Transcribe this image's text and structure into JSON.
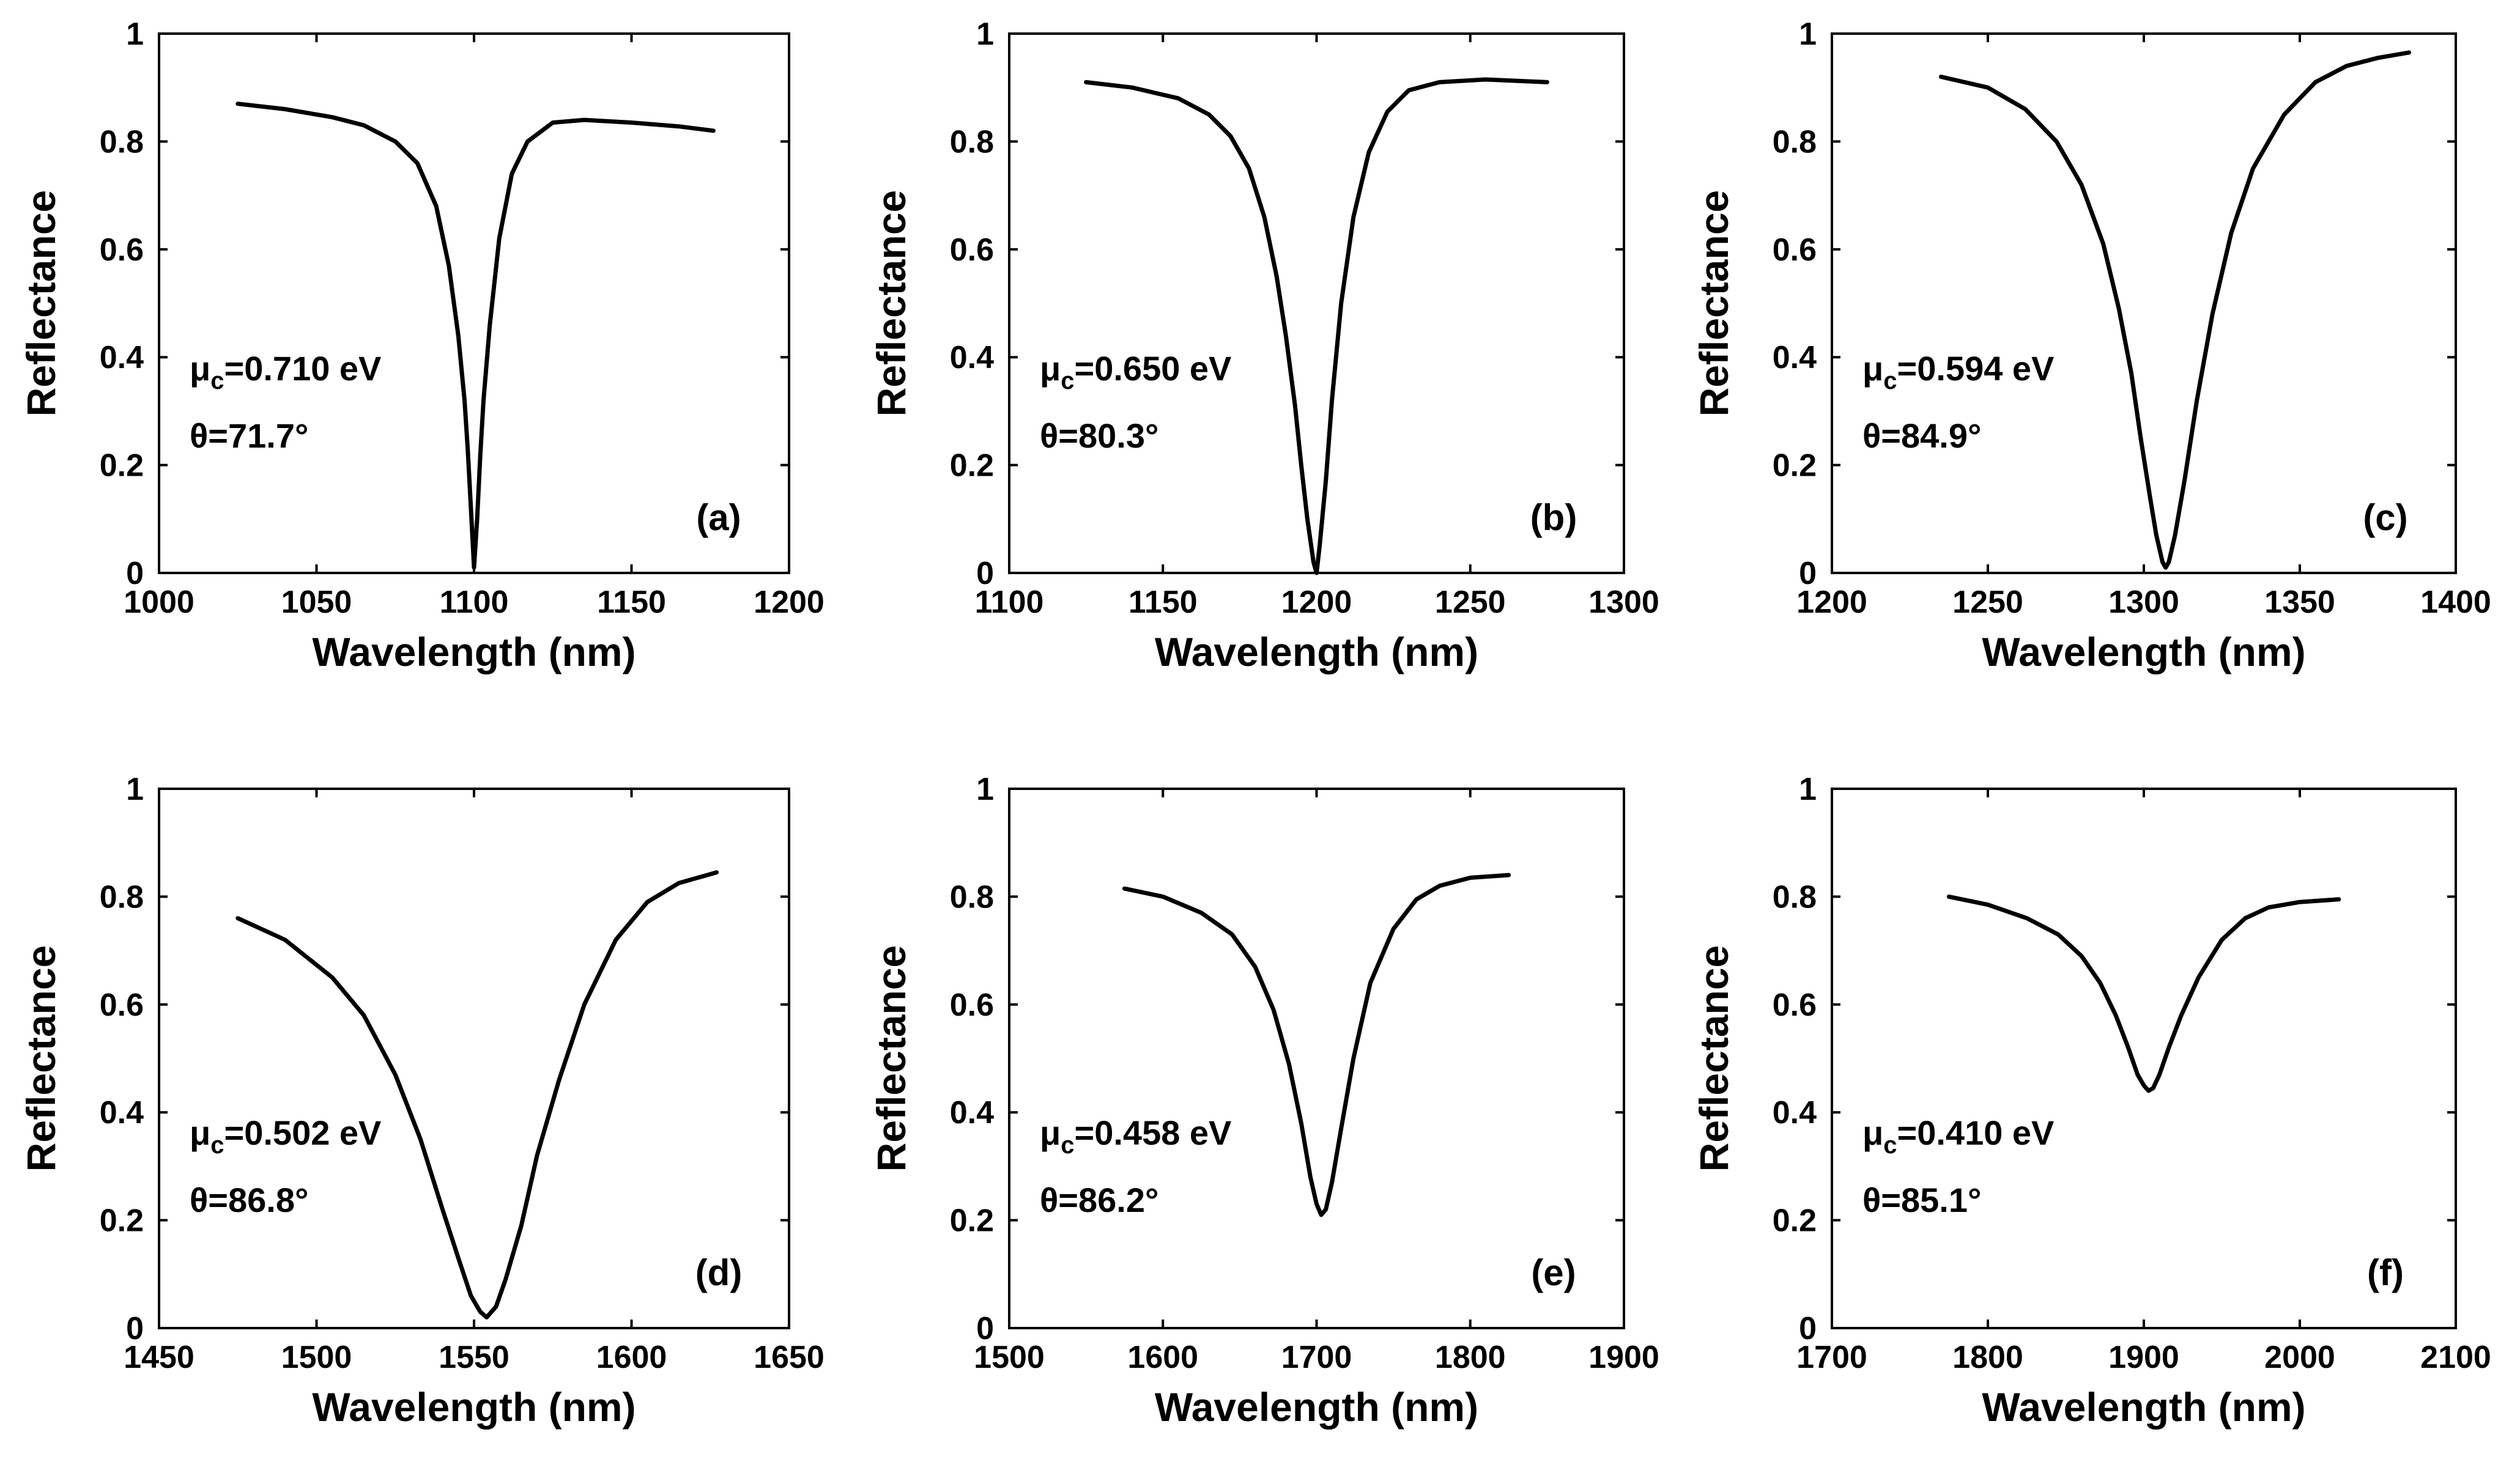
{
  "chart_data": [
    {
      "type": "line",
      "panel_label": "(a)",
      "xlabel": "Wavelength (nm)",
      "ylabel": "Reflectance",
      "xlim": [
        1000,
        1200
      ],
      "ylim": [
        0,
        1
      ],
      "xticks": [
        1000,
        1050,
        1100,
        1150,
        1200
      ],
      "yticks": [
        0,
        0.2,
        0.4,
        0.6,
        0.8,
        1
      ],
      "annotations": {
        "mu_symbol": "μ",
        "mu_sub": "c",
        "mu_value": "=0.710 eV",
        "theta": "θ=71.7°"
      },
      "series": [
        {
          "name": "Reflectance",
          "x": [
            1025,
            1040,
            1055,
            1065,
            1075,
            1082,
            1088,
            1092,
            1095,
            1097,
            1098,
            1099,
            1100,
            1101,
            1102,
            1103,
            1105,
            1108,
            1112,
            1117,
            1125,
            1135,
            1150,
            1165,
            1176
          ],
          "y": [
            0.87,
            0.86,
            0.845,
            0.83,
            0.8,
            0.76,
            0.68,
            0.57,
            0.44,
            0.32,
            0.23,
            0.12,
            0.01,
            0.1,
            0.22,
            0.32,
            0.46,
            0.62,
            0.74,
            0.8,
            0.835,
            0.84,
            0.835,
            0.828,
            0.82
          ]
        }
      ]
    },
    {
      "type": "line",
      "panel_label": "(b)",
      "xlabel": "Wavelength (nm)",
      "ylabel": "Reflectance",
      "xlim": [
        1100,
        1300
      ],
      "ylim": [
        0,
        1
      ],
      "xticks": [
        1100,
        1150,
        1200,
        1250,
        1300
      ],
      "yticks": [
        0,
        0.2,
        0.4,
        0.6,
        0.8,
        1
      ],
      "annotations": {
        "mu_symbol": "μ",
        "mu_sub": "c",
        "mu_value": "=0.650 eV",
        "theta": "θ=80.3°"
      },
      "series": [
        {
          "name": "Reflectance",
          "x": [
            1125,
            1140,
            1155,
            1165,
            1172,
            1178,
            1183,
            1187,
            1190,
            1193,
            1195,
            1197,
            1199,
            1200,
            1201,
            1203,
            1205,
            1208,
            1212,
            1217,
            1223,
            1230,
            1240,
            1255,
            1275
          ],
          "y": [
            0.91,
            0.9,
            0.88,
            0.85,
            0.81,
            0.75,
            0.66,
            0.55,
            0.44,
            0.31,
            0.2,
            0.1,
            0.02,
            0.0,
            0.05,
            0.17,
            0.32,
            0.5,
            0.66,
            0.78,
            0.855,
            0.895,
            0.91,
            0.915,
            0.91
          ]
        }
      ]
    },
    {
      "type": "line",
      "panel_label": "(c)",
      "xlabel": "Wavelength (nm)",
      "ylabel": "Reflectance",
      "xlim": [
        1200,
        1400
      ],
      "ylim": [
        0,
        1
      ],
      "xticks": [
        1200,
        1250,
        1300,
        1350,
        1400
      ],
      "yticks": [
        0,
        0.2,
        0.4,
        0.6,
        0.8,
        1
      ],
      "annotations": {
        "mu_symbol": "μ",
        "mu_sub": "c",
        "mu_value": "=0.594 eV",
        "theta": "θ=84.9°"
      },
      "series": [
        {
          "name": "Reflectance",
          "x": [
            1235,
            1250,
            1262,
            1272,
            1280,
            1287,
            1292,
            1296,
            1299,
            1302,
            1304,
            1306,
            1307,
            1308,
            1310,
            1313,
            1317,
            1322,
            1328,
            1335,
            1345,
            1355,
            1365,
            1375,
            1385
          ],
          "y": [
            0.92,
            0.9,
            0.86,
            0.8,
            0.72,
            0.61,
            0.49,
            0.37,
            0.25,
            0.14,
            0.07,
            0.02,
            0.01,
            0.02,
            0.07,
            0.17,
            0.32,
            0.48,
            0.63,
            0.75,
            0.85,
            0.91,
            0.94,
            0.955,
            0.965
          ]
        }
      ]
    },
    {
      "type": "line",
      "panel_label": "(d)",
      "xlabel": "Wavelength (nm)",
      "ylabel": "Reflectance",
      "xlim": [
        1450,
        1650
      ],
      "ylim": [
        0,
        1
      ],
      "xticks": [
        1450,
        1500,
        1550,
        1600,
        1650
      ],
      "yticks": [
        0,
        0.2,
        0.4,
        0.6,
        0.8,
        1
      ],
      "annotations": {
        "mu_symbol": "μ",
        "mu_sub": "c",
        "mu_value": "=0.502 eV",
        "theta": "θ=86.8°"
      },
      "series": [
        {
          "name": "Reflectance",
          "x": [
            1475,
            1490,
            1505,
            1515,
            1525,
            1533,
            1540,
            1545,
            1549,
            1552,
            1554,
            1557,
            1560,
            1565,
            1570,
            1577,
            1585,
            1595,
            1605,
            1615,
            1627
          ],
          "y": [
            0.76,
            0.72,
            0.65,
            0.58,
            0.47,
            0.35,
            0.22,
            0.13,
            0.06,
            0.03,
            0.02,
            0.04,
            0.09,
            0.19,
            0.32,
            0.46,
            0.6,
            0.72,
            0.79,
            0.825,
            0.845
          ]
        }
      ]
    },
    {
      "type": "line",
      "panel_label": "(e)",
      "xlabel": "Wavelength (nm)",
      "ylabel": "Reflectance",
      "xlim": [
        1500,
        1900
      ],
      "ylim": [
        0,
        1
      ],
      "xticks": [
        1500,
        1600,
        1700,
        1800,
        1900
      ],
      "yticks": [
        0,
        0.2,
        0.4,
        0.6,
        0.8,
        1
      ],
      "annotations": {
        "mu_symbol": "μ",
        "mu_sub": "c",
        "mu_value": "=0.458 eV",
        "theta": "θ=86.2°"
      },
      "series": [
        {
          "name": "Reflectance",
          "x": [
            1575,
            1600,
            1625,
            1645,
            1660,
            1672,
            1682,
            1690,
            1696,
            1700,
            1703,
            1706,
            1710,
            1716,
            1724,
            1735,
            1750,
            1765,
            1780,
            1800,
            1825
          ],
          "y": [
            0.815,
            0.8,
            0.77,
            0.73,
            0.67,
            0.59,
            0.49,
            0.38,
            0.28,
            0.23,
            0.21,
            0.22,
            0.27,
            0.37,
            0.5,
            0.64,
            0.74,
            0.795,
            0.82,
            0.835,
            0.84
          ]
        }
      ]
    },
    {
      "type": "line",
      "panel_label": "(f)",
      "xlabel": "Wavelength (nm)",
      "ylabel": "Reflectance",
      "xlim": [
        1700,
        2100
      ],
      "ylim": [
        0,
        1
      ],
      "xticks": [
        1700,
        1800,
        1900,
        2000,
        2100
      ],
      "yticks": [
        0,
        0.2,
        0.4,
        0.6,
        0.8,
        1
      ],
      "annotations": {
        "mu_symbol": "μ",
        "mu_sub": "c",
        "mu_value": "=0.410 eV",
        "theta": "θ=85.1°"
      },
      "series": [
        {
          "name": "Reflectance",
          "x": [
            1775,
            1800,
            1825,
            1845,
            1860,
            1872,
            1882,
            1890,
            1896,
            1900,
            1903,
            1906,
            1910,
            1916,
            1924,
            1935,
            1950,
            1965,
            1980,
            2000,
            2025
          ],
          "y": [
            0.8,
            0.785,
            0.76,
            0.73,
            0.69,
            0.64,
            0.58,
            0.52,
            0.47,
            0.45,
            0.44,
            0.445,
            0.47,
            0.52,
            0.58,
            0.65,
            0.72,
            0.76,
            0.78,
            0.79,
            0.795
          ]
        }
      ]
    }
  ]
}
